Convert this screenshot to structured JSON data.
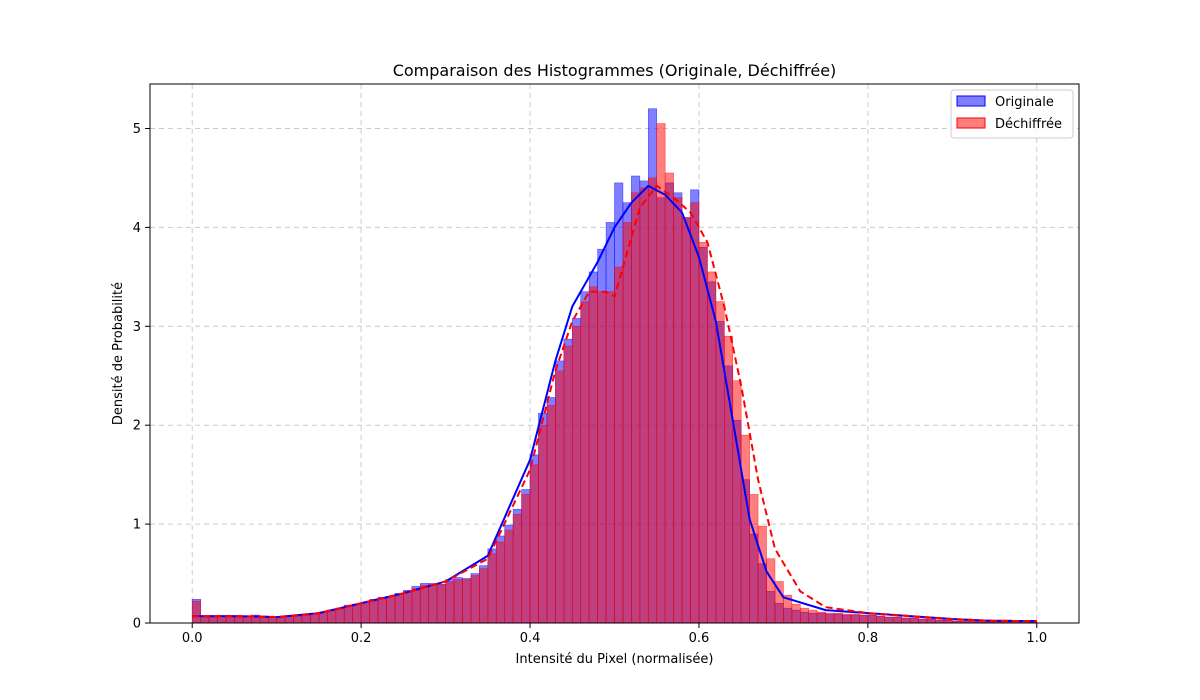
{
  "chart_data": {
    "type": "bar",
    "title": "Comparaison des Histogrammes (Originale, Déchiffrée)",
    "xlabel": "Intensité du Pixel (normalisée)",
    "ylabel": "Densité de Probabilité",
    "xlim": [
      -0.05,
      1.05
    ],
    "ylim": [
      0,
      5.45
    ],
    "xticks": [
      0.0,
      0.2,
      0.4,
      0.6,
      0.8,
      1.0
    ],
    "xtick_labels": [
      "0.0",
      "0.2",
      "0.4",
      "0.6",
      "0.8",
      "1.0"
    ],
    "yticks": [
      0,
      1,
      2,
      3,
      4,
      5
    ],
    "ytick_labels": [
      "0",
      "1",
      "2",
      "3",
      "4",
      "5"
    ],
    "grid": true,
    "legend_position": "top-right",
    "series": [
      {
        "name": "Originale",
        "color": "#0000ff",
        "kde_style": "solid",
        "bin_edges": [
          0.0,
          0.01,
          0.02,
          0.03,
          0.04,
          0.05,
          0.06,
          0.07,
          0.08,
          0.09,
          0.1,
          0.11,
          0.12,
          0.13,
          0.14,
          0.15,
          0.16,
          0.17,
          0.18,
          0.19,
          0.2,
          0.21,
          0.22,
          0.23,
          0.24,
          0.25,
          0.26,
          0.27,
          0.28,
          0.29,
          0.3,
          0.31,
          0.32,
          0.33,
          0.34,
          0.35,
          0.36,
          0.37,
          0.38,
          0.39,
          0.4,
          0.41,
          0.42,
          0.43,
          0.44,
          0.45,
          0.46,
          0.47,
          0.48,
          0.49,
          0.5,
          0.51,
          0.52,
          0.53,
          0.54,
          0.55,
          0.56,
          0.57,
          0.58,
          0.59,
          0.6,
          0.61,
          0.62,
          0.63,
          0.64,
          0.65,
          0.66,
          0.67,
          0.68,
          0.69,
          0.7,
          0.71,
          0.72,
          0.73,
          0.74,
          0.75,
          0.76,
          0.77,
          0.78,
          0.79,
          0.8,
          0.81,
          0.82,
          0.83,
          0.84,
          0.85,
          0.86,
          0.87,
          0.88,
          0.89,
          0.9,
          0.91,
          0.92,
          0.93,
          0.94,
          0.95,
          0.96,
          0.97,
          0.98,
          0.99,
          1.0
        ],
        "density": [
          0.24,
          0.06,
          0.06,
          0.07,
          0.06,
          0.07,
          0.07,
          0.08,
          0.07,
          0.06,
          0.06,
          0.07,
          0.07,
          0.08,
          0.09,
          0.11,
          0.13,
          0.15,
          0.18,
          0.19,
          0.21,
          0.24,
          0.26,
          0.27,
          0.3,
          0.33,
          0.37,
          0.4,
          0.4,
          0.39,
          0.44,
          0.46,
          0.45,
          0.5,
          0.58,
          0.75,
          0.88,
          0.99,
          1.15,
          1.35,
          1.7,
          2.12,
          2.28,
          2.65,
          2.87,
          3.08,
          3.35,
          3.55,
          3.78,
          4.05,
          4.45,
          4.25,
          4.52,
          4.47,
          5.2,
          4.3,
          4.45,
          4.35,
          4.1,
          4.38,
          3.8,
          3.45,
          3.05,
          2.6,
          2.05,
          1.45,
          0.9,
          0.6,
          0.32,
          0.2,
          0.15,
          0.13,
          0.11,
          0.1,
          0.1,
          0.09,
          0.09,
          0.08,
          0.08,
          0.08,
          0.08,
          0.07,
          0.06,
          0.06,
          0.05,
          0.05,
          0.04,
          0.04,
          0.03,
          0.03,
          0.02,
          0.02,
          0.02,
          0.02,
          0.03,
          0.03,
          0.03,
          0.02,
          0.02,
          0.01
        ],
        "kde_x": [
          0.0,
          0.05,
          0.1,
          0.15,
          0.2,
          0.25,
          0.3,
          0.35,
          0.4,
          0.43,
          0.45,
          0.48,
          0.5,
          0.52,
          0.54,
          0.56,
          0.58,
          0.6,
          0.62,
          0.64,
          0.66,
          0.68,
          0.7,
          0.75,
          0.8,
          0.85,
          0.9,
          0.95,
          1.0
        ],
        "kde_y": [
          0.07,
          0.07,
          0.06,
          0.1,
          0.2,
          0.3,
          0.42,
          0.68,
          1.65,
          2.65,
          3.2,
          3.65,
          4.0,
          4.25,
          4.42,
          4.33,
          4.15,
          3.7,
          3.05,
          2.05,
          1.05,
          0.52,
          0.26,
          0.13,
          0.1,
          0.07,
          0.04,
          0.02,
          0.02
        ]
      },
      {
        "name": "Déchiffrée",
        "color": "#ff0000",
        "kde_style": "dashed",
        "bin_edges": [
          0.0,
          0.01,
          0.02,
          0.03,
          0.04,
          0.05,
          0.06,
          0.07,
          0.08,
          0.09,
          0.1,
          0.11,
          0.12,
          0.13,
          0.14,
          0.15,
          0.16,
          0.17,
          0.18,
          0.19,
          0.2,
          0.21,
          0.22,
          0.23,
          0.24,
          0.25,
          0.26,
          0.27,
          0.28,
          0.29,
          0.3,
          0.31,
          0.32,
          0.33,
          0.34,
          0.35,
          0.36,
          0.37,
          0.38,
          0.39,
          0.4,
          0.41,
          0.42,
          0.43,
          0.44,
          0.45,
          0.46,
          0.47,
          0.48,
          0.49,
          0.5,
          0.51,
          0.52,
          0.53,
          0.54,
          0.55,
          0.56,
          0.57,
          0.58,
          0.59,
          0.6,
          0.61,
          0.62,
          0.63,
          0.64,
          0.65,
          0.66,
          0.67,
          0.68,
          0.69,
          0.7,
          0.71,
          0.72,
          0.73,
          0.74,
          0.75,
          0.76,
          0.77,
          0.78,
          0.79,
          0.8,
          0.81,
          0.82,
          0.83,
          0.84,
          0.85,
          0.86,
          0.87,
          0.88,
          0.89,
          0.9,
          0.91,
          0.92,
          0.93,
          0.94,
          0.95,
          0.96,
          0.97,
          0.98,
          0.99,
          1.0
        ],
        "density": [
          0.22,
          0.06,
          0.06,
          0.07,
          0.06,
          0.07,
          0.07,
          0.07,
          0.07,
          0.06,
          0.06,
          0.07,
          0.07,
          0.08,
          0.09,
          0.11,
          0.13,
          0.15,
          0.17,
          0.19,
          0.21,
          0.23,
          0.25,
          0.27,
          0.29,
          0.32,
          0.35,
          0.38,
          0.39,
          0.39,
          0.42,
          0.44,
          0.44,
          0.48,
          0.55,
          0.7,
          0.82,
          0.94,
          1.1,
          1.3,
          1.6,
          2.0,
          2.2,
          2.55,
          2.8,
          3.0,
          3.25,
          3.4,
          3.35,
          3.35,
          3.6,
          4.05,
          4.35,
          4.4,
          4.5,
          5.05,
          4.55,
          4.3,
          4.1,
          4.25,
          3.85,
          3.55,
          3.25,
          2.9,
          2.45,
          1.9,
          1.3,
          0.98,
          0.65,
          0.42,
          0.28,
          0.19,
          0.15,
          0.13,
          0.11,
          0.1,
          0.1,
          0.09,
          0.09,
          0.08,
          0.08,
          0.07,
          0.06,
          0.06,
          0.05,
          0.05,
          0.04,
          0.04,
          0.03,
          0.03,
          0.02,
          0.02,
          0.02,
          0.02,
          0.03,
          0.03,
          0.03,
          0.02,
          0.02,
          0.01
        ],
        "kde_x": [
          0.0,
          0.05,
          0.1,
          0.15,
          0.2,
          0.25,
          0.3,
          0.35,
          0.4,
          0.43,
          0.45,
          0.47,
          0.49,
          0.5,
          0.51,
          0.53,
          0.55,
          0.57,
          0.59,
          0.61,
          0.63,
          0.65,
          0.67,
          0.69,
          0.72,
          0.75,
          0.8,
          0.85,
          0.9,
          0.95,
          1.0
        ],
        "kde_y": [
          0.07,
          0.07,
          0.06,
          0.1,
          0.2,
          0.3,
          0.42,
          0.65,
          1.55,
          2.55,
          3.05,
          3.35,
          3.35,
          3.3,
          3.6,
          4.2,
          4.42,
          4.3,
          4.15,
          3.85,
          3.2,
          2.4,
          1.45,
          0.75,
          0.32,
          0.16,
          0.1,
          0.07,
          0.04,
          0.02,
          0.02
        ]
      }
    ]
  }
}
